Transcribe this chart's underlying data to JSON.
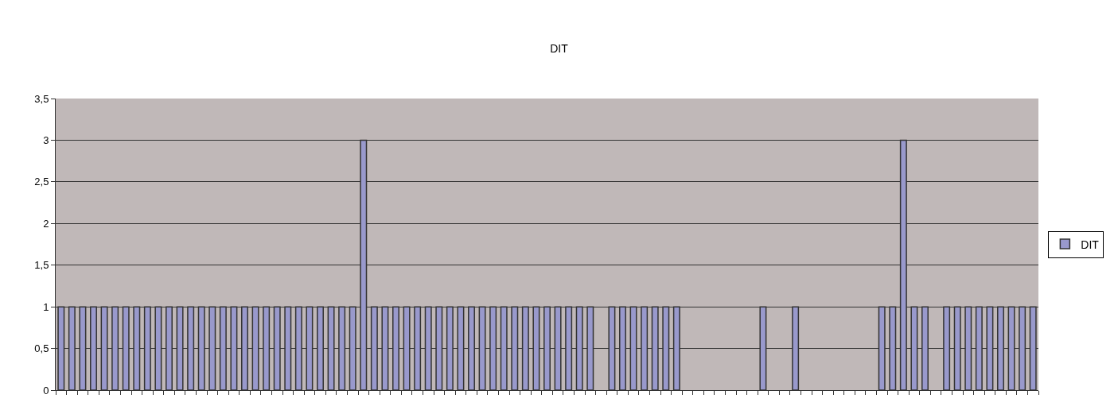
{
  "chart_data": {
    "type": "bar",
    "title": "DIT",
    "categories": [
      null,
      null,
      null,
      null,
      null,
      null,
      null,
      null,
      null,
      null,
      null,
      null,
      null,
      null,
      null,
      null,
      null,
      null,
      null,
      null,
      null,
      null,
      null,
      null,
      null,
      null,
      null,
      null,
      null,
      null,
      null,
      null,
      null,
      null,
      null,
      null,
      null,
      null,
      null,
      null,
      null,
      null,
      null,
      null,
      null,
      null,
      null,
      null,
      null,
      null,
      null,
      null,
      null,
      null,
      null,
      null,
      null,
      null,
      null,
      null,
      null,
      null,
      null,
      null,
      null,
      null,
      null,
      null,
      null,
      null,
      null,
      null,
      null,
      null,
      null,
      null,
      null,
      null,
      null,
      null,
      null,
      null,
      null,
      null,
      null,
      null,
      null,
      null,
      null,
      null,
      null
    ],
    "series": [
      {
        "name": "DIT",
        "color": "#9999cc",
        "values": [
          1,
          1,
          1,
          1,
          1,
          1,
          1,
          1,
          1,
          1,
          1,
          1,
          1,
          1,
          1,
          1,
          1,
          1,
          1,
          1,
          1,
          1,
          1,
          1,
          1,
          1,
          1,
          1,
          3,
          1,
          1,
          1,
          1,
          1,
          1,
          1,
          1,
          1,
          1,
          1,
          1,
          1,
          1,
          1,
          1,
          1,
          1,
          1,
          1,
          1,
          null,
          1,
          1,
          1,
          1,
          1,
          1,
          1,
          null,
          null,
          null,
          null,
          null,
          null,
          null,
          1,
          null,
          null,
          1,
          null,
          null,
          null,
          null,
          null,
          null,
          null,
          1,
          1,
          3,
          1,
          1,
          null,
          1,
          1,
          1,
          1,
          1,
          1,
          1,
          1,
          1
        ]
      }
    ],
    "ylim": [
      0,
      3.5
    ],
    "yticks": [
      0,
      {
        "value": 0.5,
        "label": "0,5"
      },
      1,
      {
        "value": 1.5,
        "label": "1,5"
      },
      2,
      {
        "value": 2.5,
        "label": "2,5"
      },
      3,
      {
        "value": 3.5,
        "label": "3,5"
      }
    ],
    "grid": "y",
    "legend": "right",
    "tick_labels": "y"
  }
}
